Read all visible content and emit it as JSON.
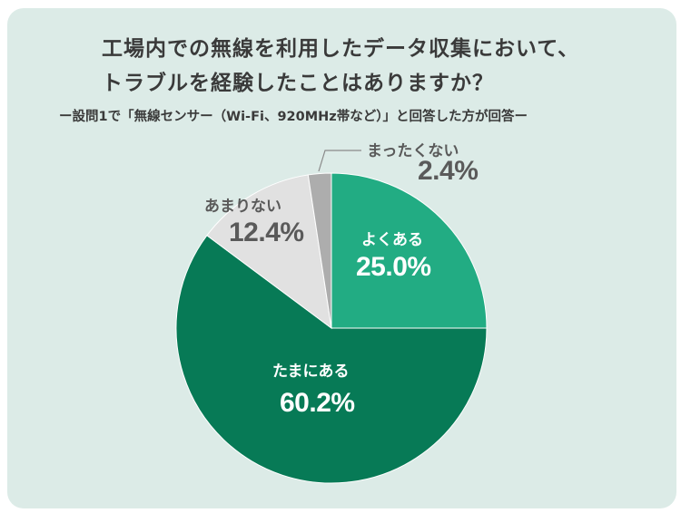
{
  "header": {
    "title_line1": "工場内での無線を利用したデータ収集において、",
    "title_line2": "トラブルを経験したことはありますか？",
    "subtitle": "ー設問1で「無線センサー（Wi-Fi、920MHz帯など）」と回答した方が回答ー"
  },
  "labels": {
    "often": {
      "name": "よくある",
      "pct": "25.0%"
    },
    "sometimes": {
      "name": "たまにある",
      "pct": "60.2%"
    },
    "rarely": {
      "name": "あまりない",
      "pct": "12.4%"
    },
    "never": {
      "name": "まったくない",
      "pct": "2.4%"
    }
  },
  "chart_data": {
    "type": "pie",
    "title": "工場内での無線を利用したデータ収集において、トラブルを経験したことはありますか？",
    "subtitle": "ー設問1で「無線センサー（Wi-Fi、920MHz帯など）」と回答した方が回答ー",
    "categories": [
      "よくある",
      "たまにある",
      "あまりない",
      "まったくない"
    ],
    "values": [
      25.0,
      60.2,
      12.4,
      2.4
    ],
    "unit": "%",
    "colors": [
      "#22ac83",
      "#077a56",
      "#e1e1e1",
      "#adadad"
    ],
    "start_angle": "12 o'clock, clockwise",
    "legend": "none (direct labels)"
  }
}
